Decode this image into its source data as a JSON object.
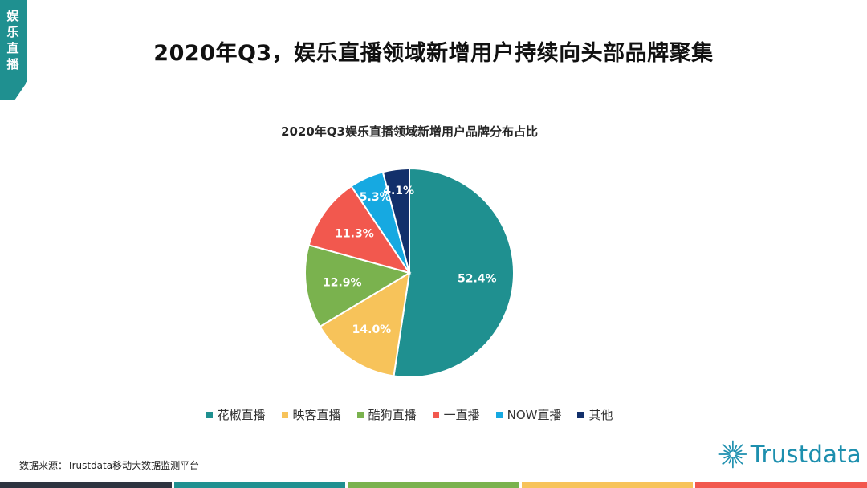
{
  "side_tab": {
    "label": "娱乐直播"
  },
  "header": {
    "title": "2020年Q3，娱乐直播领域新增用户持续向头部品牌聚集"
  },
  "source": "数据来源：Trustdata移动大数据监测平台",
  "logo": {
    "text": "Trustdata",
    "icon": "starburst-icon"
  },
  "colors": {
    "accent": "#1f9090",
    "bottom_bar": [
      "#2e3440",
      "#1f9090",
      "#7ab24e",
      "#f7c35a",
      "#f2584e"
    ]
  },
  "chart_data": {
    "type": "pie",
    "title": "2020年Q3娱乐直播领域新增用户品牌分布占比",
    "categories": [
      "花椒直播",
      "映客直播",
      "酷狗直播",
      "一直播",
      "NOW直播",
      "其他"
    ],
    "values": [
      52.4,
      14.0,
      12.9,
      11.3,
      5.3,
      4.1
    ],
    "labels": [
      "52.4%",
      "14.0%",
      "12.9%",
      "11.3%",
      "5.3%",
      "4.1%"
    ],
    "colors": [
      "#1f9090",
      "#f7c35a",
      "#7ab24e",
      "#f2584e",
      "#16a9e1",
      "#12306b"
    ],
    "start": "12 o'clock",
    "direction": "clockwise",
    "legend_position": "bottom"
  }
}
